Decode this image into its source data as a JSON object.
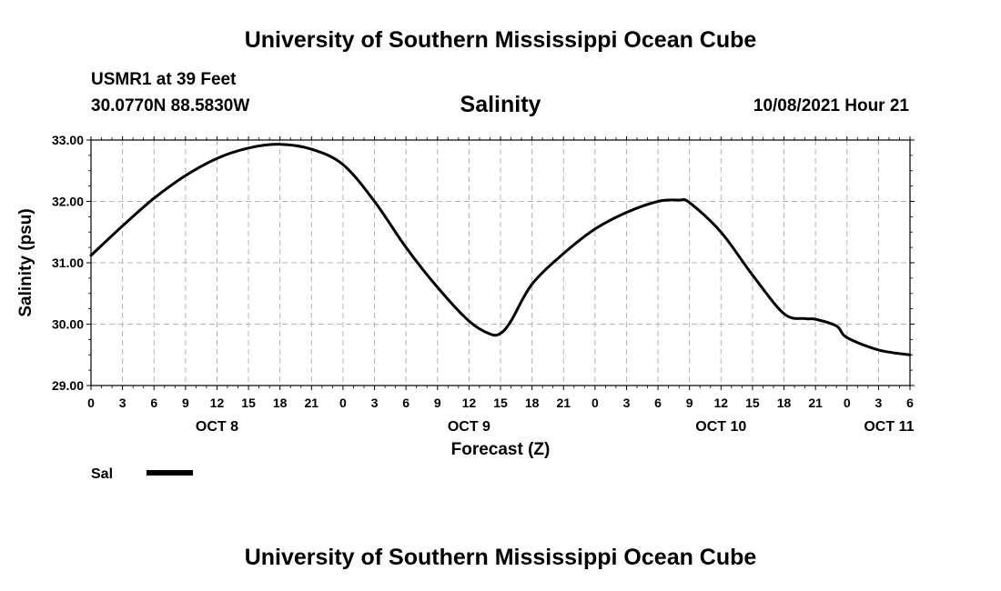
{
  "header": {
    "title": "University of Southern Mississippi Ocean Cube",
    "station": "USMR1 at 39 Feet",
    "coordinates": "30.0770N  88.5830W",
    "chart_title": "Salinity",
    "datetime": "10/08/2021 Hour 21"
  },
  "footer": {
    "title": "University of Southern Mississippi Ocean Cube"
  },
  "colors": {
    "line": "#000000",
    "grid": "#b4b4b4",
    "axis": "#000000"
  },
  "chart_data": {
    "type": "line",
    "title": "Salinity",
    "xlabel": "Forecast (Z)",
    "ylabel": "Salinity (psu)",
    "ylim": [
      29.0,
      33.0
    ],
    "yticks": [
      "29.00",
      "30.00",
      "31.00",
      "32.00",
      "33.00"
    ],
    "xlim_hours": [
      0,
      78
    ],
    "x_tick_step_hours": 3,
    "xtick_labels": [
      "0",
      "3",
      "6",
      "9",
      "12",
      "15",
      "18",
      "21",
      "0",
      "3",
      "6",
      "9",
      "12",
      "15",
      "18",
      "21",
      "0",
      "3",
      "6",
      "9",
      "12",
      "15",
      "18",
      "21",
      "0",
      "3",
      "6"
    ],
    "day_labels": [
      {
        "label": "OCT 8",
        "hour": 12
      },
      {
        "label": "OCT 9",
        "hour": 36
      },
      {
        "label": "OCT 10",
        "hour": 60
      },
      {
        "label": "OCT 11",
        "hour": 76
      }
    ],
    "grid": true,
    "legend": [
      {
        "label": "Sal",
        "position": "bottom-left"
      }
    ],
    "series": [
      {
        "name": "Sal",
        "x": [
          0,
          3,
          6,
          9,
          12,
          15,
          18,
          21,
          24,
          27,
          30,
          33,
          36,
          38,
          39,
          40,
          42,
          45,
          48,
          51,
          54,
          56,
          57,
          60,
          63,
          66,
          68,
          69,
          71,
          72,
          75,
          78
        ],
        "values": [
          31.12,
          31.6,
          32.05,
          32.42,
          32.7,
          32.87,
          32.93,
          32.85,
          32.6,
          32.0,
          31.25,
          30.6,
          30.05,
          29.84,
          29.85,
          30.05,
          30.65,
          31.15,
          31.55,
          31.82,
          32.0,
          32.02,
          31.98,
          31.5,
          30.8,
          30.17,
          30.09,
          30.08,
          29.97,
          29.78,
          29.58,
          29.5
        ]
      }
    ]
  }
}
